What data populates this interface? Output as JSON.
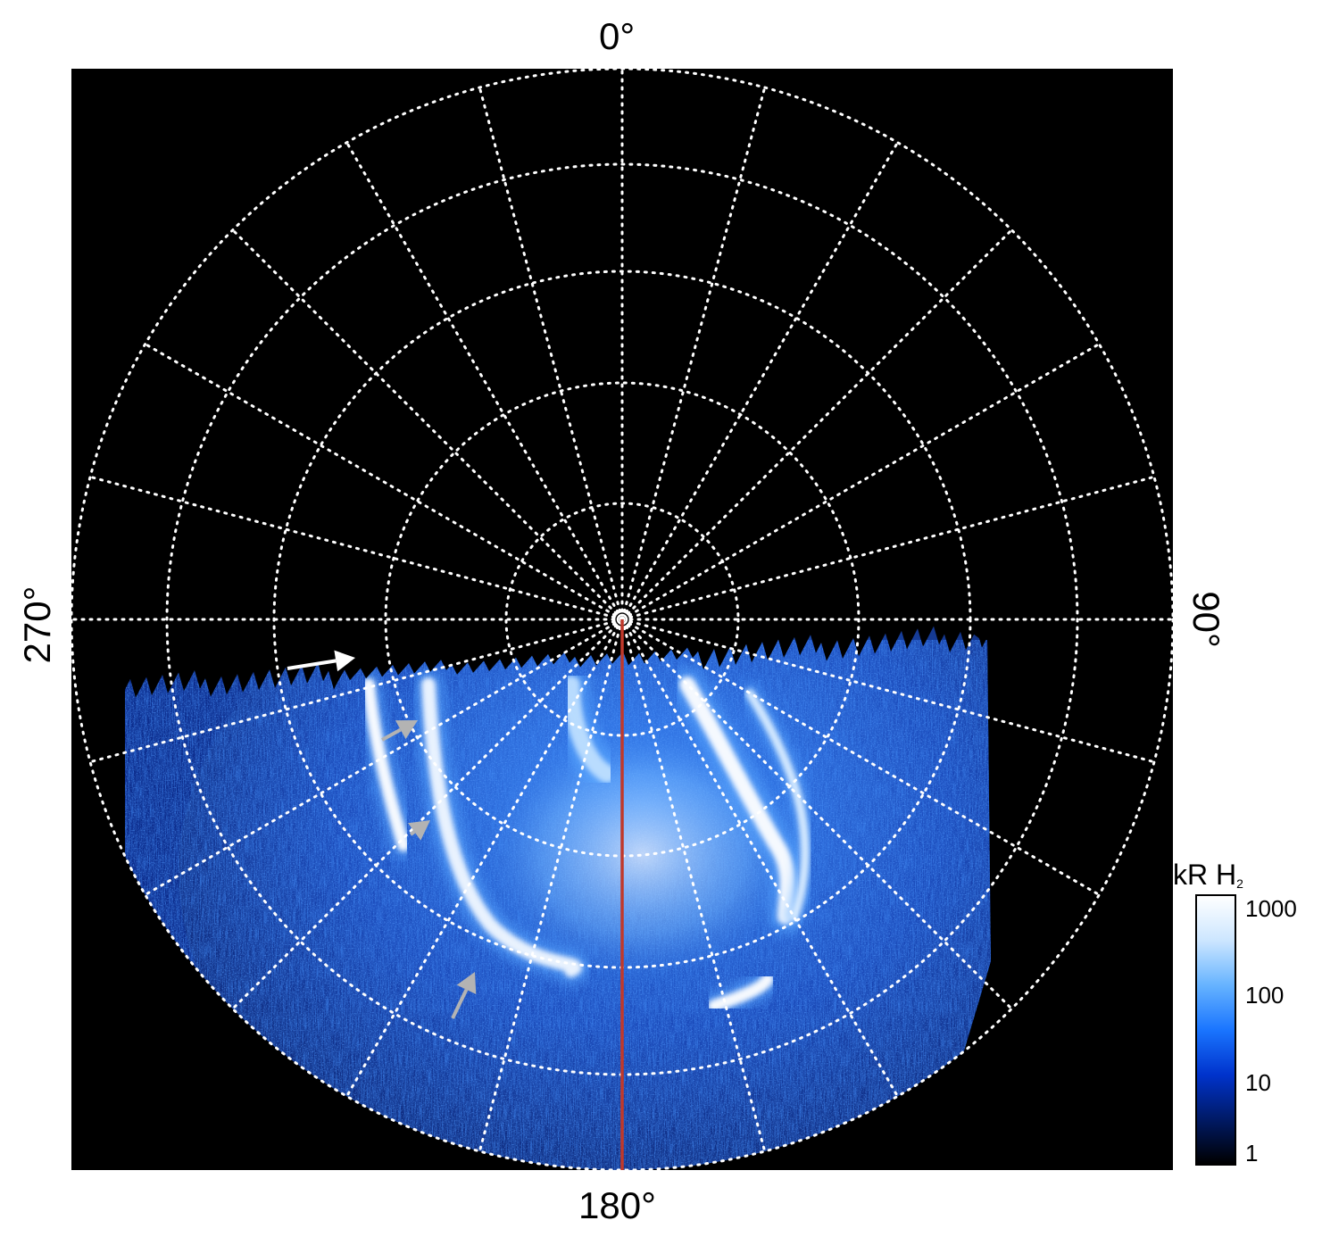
{
  "image": {
    "description_free": true,
    "colors": {
      "background": "#000000",
      "grid": "#ffffff",
      "central_meridian": "#c0392b",
      "white_arrow": "#ffffff",
      "grey_arrow": "#b3b3b3"
    }
  },
  "azimuth_labels": {
    "top": "0°",
    "bottom": "180°",
    "left": "270°",
    "right": "90°"
  },
  "colorbar": {
    "title": "kR H",
    "title_subscript": "2",
    "ticks": [
      "1000",
      "100",
      "10",
      "1"
    ],
    "scale": "log",
    "range": [
      1,
      1000
    ],
    "colors": [
      "#000000",
      "#001a66",
      "#0033cc",
      "#1a75ff",
      "#66b3ff",
      "#cce6ff",
      "#ffffff"
    ]
  }
}
